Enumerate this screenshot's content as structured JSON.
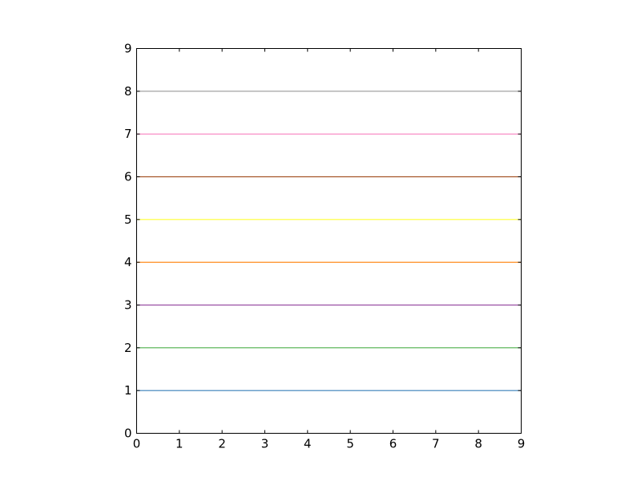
{
  "chart_data": {
    "type": "line",
    "title": "",
    "xlabel": "",
    "ylabel": "",
    "xlim": [
      0,
      9
    ],
    "ylim": [
      0,
      9
    ],
    "grid": false,
    "legend": "none",
    "x_ticks": [
      "0",
      "1",
      "2",
      "3",
      "4",
      "5",
      "6",
      "7",
      "8",
      "9"
    ],
    "y_ticks": [
      "0",
      "1",
      "2",
      "3",
      "4",
      "5",
      "6",
      "7",
      "8",
      "9"
    ],
    "series": [
      {
        "x": [
          0,
          9
        ],
        "y": [
          1,
          1
        ],
        "color": "#377eb8"
      },
      {
        "x": [
          0,
          9
        ],
        "y": [
          2,
          2
        ],
        "color": "#4daf4a"
      },
      {
        "x": [
          0,
          9
        ],
        "y": [
          3,
          3
        ],
        "color": "#984ea3"
      },
      {
        "x": [
          0,
          9
        ],
        "y": [
          4,
          4
        ],
        "color": "#ff7f00"
      },
      {
        "x": [
          0,
          9
        ],
        "y": [
          5,
          5
        ],
        "color": "#ffff33"
      },
      {
        "x": [
          0,
          9
        ],
        "y": [
          6,
          6
        ],
        "color": "#a65628"
      },
      {
        "x": [
          0,
          9
        ],
        "y": [
          7,
          7
        ],
        "color": "#f781bf"
      },
      {
        "x": [
          0,
          9
        ],
        "y": [
          8,
          8
        ],
        "color": "#999999"
      }
    ]
  }
}
